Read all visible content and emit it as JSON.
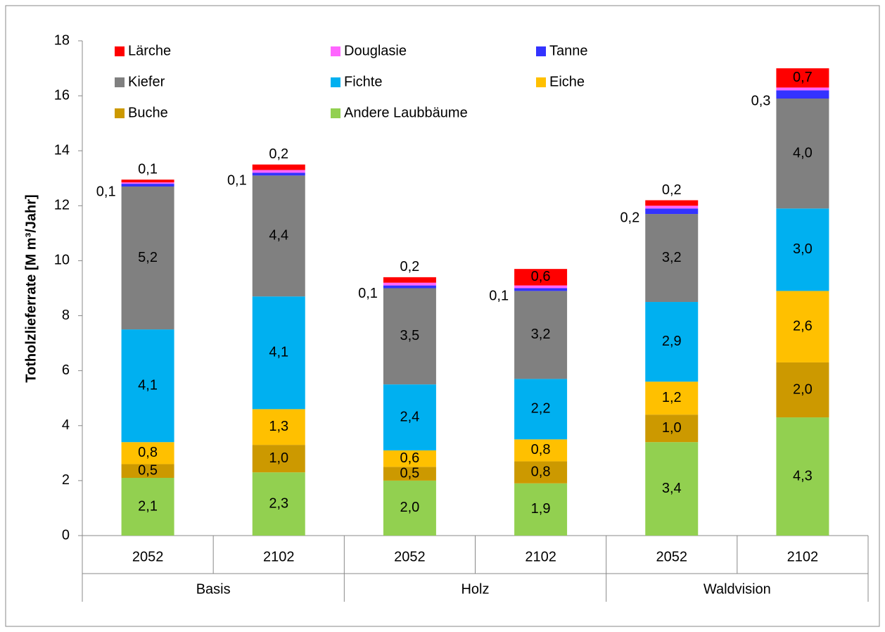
{
  "chart_data": {
    "type": "stacked_bar",
    "y_label": "Totholzlieferrate [M m³/Jahr]",
    "categories": [
      "2052",
      "2102",
      "2052",
      "2102",
      "2052",
      "2102"
    ],
    "groups": [
      "Basis",
      "Holz",
      "Waldvision"
    ],
    "ylim": [
      0,
      18
    ],
    "yticks": [
      0,
      2,
      4,
      6,
      8,
      10,
      12,
      14,
      16,
      18
    ],
    "grid": false,
    "series": [
      {
        "name": "Andere Laubbäume",
        "color": "#92d050",
        "values": [
          2.1,
          2.3,
          2.0,
          1.9,
          3.4,
          4.3
        ],
        "value_labels": [
          "2,1",
          "2,3",
          "2,0",
          "1,9",
          "3,4",
          "4,3"
        ]
      },
      {
        "name": "Buche",
        "color": "#cc9900",
        "values": [
          0.5,
          1.0,
          0.5,
          0.8,
          1.0,
          2.0
        ],
        "value_labels": [
          "0,5",
          "1,0",
          "0,5",
          "0,8",
          "1,0",
          "2,0"
        ]
      },
      {
        "name": "Eiche",
        "color": "#ffc000",
        "values": [
          0.8,
          1.3,
          0.6,
          0.8,
          1.2,
          2.6
        ],
        "value_labels": [
          "0,8",
          "1,3",
          "0,6",
          "0,8",
          "1,2",
          "2,6"
        ]
      },
      {
        "name": "Fichte",
        "color": "#00b0f0",
        "values": [
          4.1,
          4.1,
          2.4,
          2.2,
          2.9,
          3.0
        ],
        "value_labels": [
          "4,1",
          "4,1",
          "2,4",
          "2,2",
          "2,9",
          "3,0"
        ]
      },
      {
        "name": "Kiefer",
        "color": "#808080",
        "values": [
          5.2,
          4.4,
          3.5,
          3.2,
          3.2,
          4.0
        ],
        "value_labels": [
          "5,2",
          "4,4",
          "3,5",
          "3,2",
          "3,2",
          "4,0"
        ]
      },
      {
        "name": "Tanne",
        "color": "#3333ff",
        "values": [
          0.1,
          0.1,
          0.1,
          0.1,
          0.2,
          0.3
        ],
        "value_labels": [
          "0,1",
          "0,1",
          "0,1",
          "0,1",
          "0,2",
          "0,3"
        ]
      },
      {
        "name": "Douglasie",
        "color": "#ff66ff",
        "values": [
          0.05,
          0.1,
          0.1,
          0.1,
          0.1,
          0.1
        ],
        "value_labels": [
          null,
          null,
          null,
          null,
          null,
          null
        ]
      },
      {
        "name": "Lärche",
        "color": "#ff0000",
        "values": [
          0.1,
          0.2,
          0.2,
          0.6,
          0.2,
          0.7
        ],
        "value_labels": [
          "0,1",
          "0,2",
          "0,2",
          "0,6",
          "0,2",
          "0,7"
        ]
      }
    ]
  }
}
